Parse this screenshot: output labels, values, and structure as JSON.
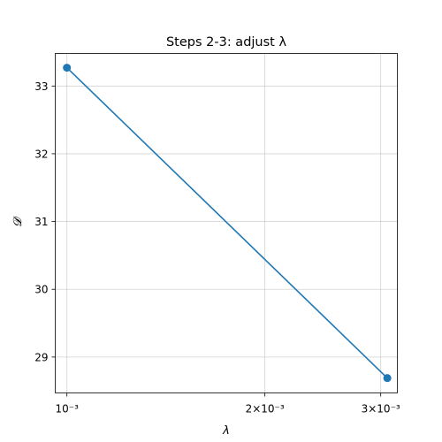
{
  "chart_data": {
    "type": "line",
    "title": "Steps 2-3: adjust λ",
    "xlabel": "λ",
    "ylabel": "𝓓",
    "x_scale": "log",
    "xlim": [
      0.00096,
      0.00318
    ],
    "ylim": [
      28.47,
      33.48
    ],
    "grid": true,
    "x_ticks": [
      {
        "value": 0.001,
        "label": "10⁻³"
      },
      {
        "value": 0.002,
        "label": "2×10⁻³"
      },
      {
        "value": 0.003,
        "label": "3×10⁻³"
      }
    ],
    "y_ticks": [
      {
        "value": 29,
        "label": "29"
      },
      {
        "value": 30,
        "label": "30"
      },
      {
        "value": 31,
        "label": "31"
      },
      {
        "value": 32,
        "label": "32"
      },
      {
        "value": 33,
        "label": "33"
      }
    ],
    "series": [
      {
        "color": "#1f77b4",
        "marker": "circle",
        "x": [
          0.001,
          0.00307
        ],
        "y": [
          33.27,
          28.69
        ]
      }
    ]
  }
}
